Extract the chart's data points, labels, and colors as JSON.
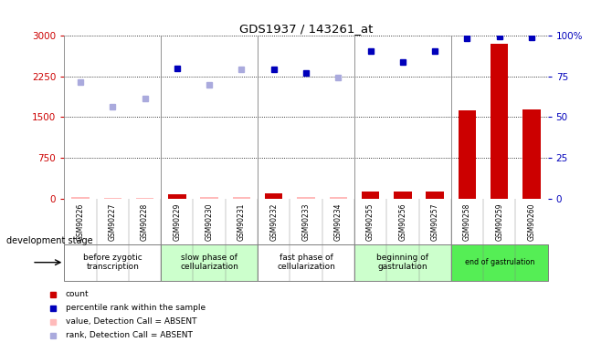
{
  "title": "GDS1937 / 143261_at",
  "samples": [
    "GSM90226",
    "GSM90227",
    "GSM90228",
    "GSM90229",
    "GSM90230",
    "GSM90231",
    "GSM90232",
    "GSM90233",
    "GSM90234",
    "GSM90255",
    "GSM90256",
    "GSM90257",
    "GSM90258",
    "GSM90259",
    "GSM90260"
  ],
  "count_values": [
    18,
    8,
    12,
    80,
    22,
    18,
    85,
    20,
    25,
    130,
    120,
    125,
    1620,
    2860,
    1650
  ],
  "count_absent": [
    true,
    true,
    true,
    false,
    true,
    true,
    false,
    true,
    true,
    false,
    false,
    false,
    false,
    false,
    false
  ],
  "rank_values": [
    2150,
    1700,
    1850,
    2400,
    2100,
    2380,
    2380,
    2320,
    2230,
    2720,
    2520,
    2720,
    2960,
    2990,
    2970
  ],
  "rank_absent": [
    true,
    true,
    true,
    false,
    true,
    true,
    false,
    false,
    true,
    false,
    false,
    false,
    false,
    false,
    false
  ],
  "ylim_left": [
    0,
    3000
  ],
  "ylim_right": [
    0,
    100
  ],
  "yticks_left": [
    0,
    750,
    1500,
    2250,
    3000
  ],
  "yticks_right": [
    0,
    25,
    50,
    75,
    100
  ],
  "color_count_present": "#cc0000",
  "color_count_absent": "#ffbbbb",
  "color_rank_present": "#0000bb",
  "color_rank_absent": "#aaaadd",
  "stage_groups": [
    {
      "label": "before zygotic\ntranscription",
      "samples_idx": [
        0,
        1,
        2
      ],
      "color": "#ffffff"
    },
    {
      "label": "slow phase of\ncellularization",
      "samples_idx": [
        3,
        4,
        5
      ],
      "color": "#ccffcc"
    },
    {
      "label": "fast phase of\ncellularization",
      "samples_idx": [
        6,
        7,
        8
      ],
      "color": "#ffffff"
    },
    {
      "label": "beginning of\ngastrulation",
      "samples_idx": [
        9,
        10,
        11
      ],
      "color": "#ccffcc"
    },
    {
      "label": "end of gastrulation",
      "samples_idx": [
        12,
        13,
        14
      ],
      "color": "#55ee55"
    }
  ],
  "legend_items": [
    {
      "label": "count",
      "color": "#cc0000"
    },
    {
      "label": "percentile rank within the sample",
      "color": "#0000bb"
    },
    {
      "label": "value, Detection Call = ABSENT",
      "color": "#ffbbbb"
    },
    {
      "label": "rank, Detection Call = ABSENT",
      "color": "#aaaadd"
    }
  ]
}
